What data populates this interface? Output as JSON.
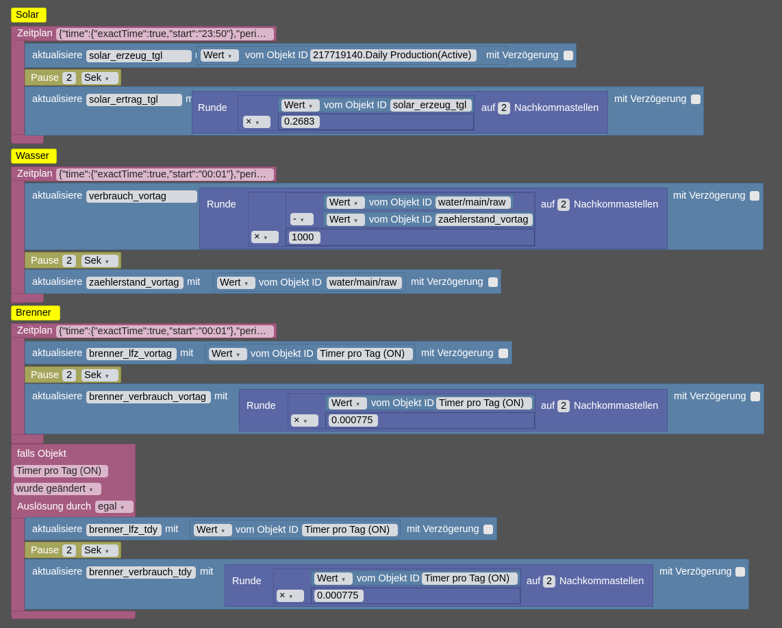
{
  "labels": {
    "update": "aktualisiere",
    "with": "mit",
    "value": "Wert",
    "from_object": "vom Objekt ID",
    "with_delay": "mit Verzögerung",
    "pause": "Pause",
    "sek": "Sek",
    "round": "Runde",
    "on": "auf",
    "decimals": "Nachkommastellen",
    "schedule": "Zeitplan",
    "times": "×",
    "minus": "-"
  },
  "solar": {
    "comment": "Solar",
    "schedule_value": "{\"time\":{\"exactTime\":true,\"start\":\"23:50\"},\"peri…",
    "update1_var": "solar_erzeug_tgl",
    "update1_obj": "217719140.Daily Production(Active)",
    "pause_val": "2",
    "update2_var": "solar_ertrag_tgl",
    "update2_obj": "solar_erzeug_tgl",
    "round_digits": "2",
    "factor": "0.2683"
  },
  "wasser": {
    "comment": "Wasser",
    "schedule_value": "{\"time\":{\"exactTime\":true,\"start\":\"00:01\"},\"peri…",
    "update1_var": "verbrauch_vortag",
    "obj_a": "water/main/raw",
    "obj_b": "zaehlerstand_vortag",
    "factor": "1000",
    "round_digits": "2",
    "pause_val": "2",
    "update2_var": "zaehlerstand_vortag",
    "update2_obj": "water/main/raw"
  },
  "brenner": {
    "comment": "Brenner",
    "schedule_value": "{\"time\":{\"exactTime\":true,\"start\":\"00:01\"},\"peri…",
    "update1_var": "brenner_lfz_vortag",
    "update1_obj": "Timer pro Tag (ON)",
    "pause_val": "2",
    "update2_var": "brenner_verbrauch_vortag",
    "update2_obj": "Timer pro Tag (ON)",
    "round_digits": "2",
    "factor": "0.000775"
  },
  "trigger": {
    "header": "falls Objekt",
    "object": "Timer pro Tag (ON)",
    "event": "wurde geändert",
    "by_label": "Auslösung durch",
    "by_value": "egal",
    "update1_var": "brenner_lfz_tdy",
    "update1_obj": "Timer pro Tag (ON)",
    "pause_val": "2",
    "update2_var": "brenner_verbrauch_tdy",
    "update2_obj": "Timer pro Tag (ON)",
    "round_digits": "2",
    "factor": "0.000775"
  }
}
